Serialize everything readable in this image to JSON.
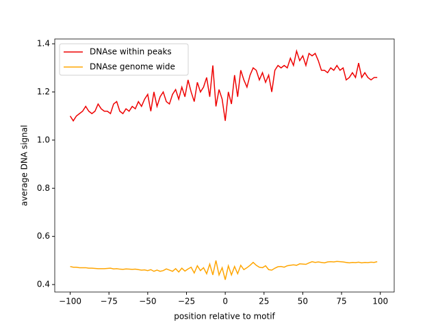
{
  "chart_data": {
    "type": "line",
    "xlabel": "position relative to motif",
    "ylabel": "average DNA signal",
    "x": [
      -100,
      -98,
      -96,
      -94,
      -92,
      -90,
      -88,
      -86,
      -84,
      -82,
      -80,
      -78,
      -76,
      -74,
      -72,
      -70,
      -68,
      -66,
      -64,
      -62,
      -60,
      -58,
      -56,
      -54,
      -52,
      -50,
      -48,
      -46,
      -44,
      -42,
      -40,
      -38,
      -36,
      -34,
      -32,
      -30,
      -28,
      -26,
      -24,
      -22,
      -20,
      -18,
      -16,
      -14,
      -12,
      -10,
      -8,
      -6,
      -4,
      -2,
      0,
      2,
      4,
      6,
      8,
      10,
      12,
      14,
      16,
      18,
      20,
      22,
      24,
      26,
      28,
      30,
      32,
      34,
      36,
      38,
      40,
      42,
      44,
      46,
      48,
      50,
      52,
      54,
      56,
      58,
      60,
      62,
      64,
      66,
      68,
      70,
      72,
      74,
      76,
      78,
      80,
      82,
      84,
      86,
      88,
      90,
      92,
      94,
      96,
      98
    ],
    "series": [
      {
        "name": "DNAse within peaks",
        "color": "#ee0000",
        "values": [
          1.1,
          1.08,
          1.1,
          1.11,
          1.12,
          1.14,
          1.12,
          1.11,
          1.12,
          1.15,
          1.13,
          1.12,
          1.12,
          1.11,
          1.15,
          1.16,
          1.12,
          1.11,
          1.13,
          1.12,
          1.14,
          1.13,
          1.16,
          1.14,
          1.17,
          1.19,
          1.12,
          1.2,
          1.14,
          1.18,
          1.2,
          1.16,
          1.15,
          1.19,
          1.21,
          1.17,
          1.22,
          1.18,
          1.25,
          1.2,
          1.16,
          1.24,
          1.2,
          1.22,
          1.26,
          1.18,
          1.31,
          1.14,
          1.21,
          1.17,
          1.08,
          1.2,
          1.15,
          1.27,
          1.18,
          1.29,
          1.25,
          1.22,
          1.27,
          1.3,
          1.29,
          1.25,
          1.28,
          1.24,
          1.27,
          1.2,
          1.29,
          1.31,
          1.3,
          1.31,
          1.3,
          1.34,
          1.31,
          1.37,
          1.33,
          1.35,
          1.31,
          1.36,
          1.35,
          1.36,
          1.33,
          1.29,
          1.29,
          1.28,
          1.3,
          1.29,
          1.31,
          1.29,
          1.3,
          1.25,
          1.26,
          1.28,
          1.26,
          1.32,
          1.26,
          1.28,
          1.26,
          1.25,
          1.26,
          1.26
        ]
      },
      {
        "name": "DNAse genome wide",
        "color": "#ffa500",
        "values": [
          0.475,
          0.472,
          0.472,
          0.47,
          0.47,
          0.47,
          0.468,
          0.468,
          0.467,
          0.466,
          0.466,
          0.466,
          0.467,
          0.468,
          0.465,
          0.466,
          0.464,
          0.463,
          0.465,
          0.464,
          0.463,
          0.464,
          0.462,
          0.46,
          0.461,
          0.458,
          0.462,
          0.455,
          0.46,
          0.455,
          0.458,
          0.465,
          0.46,
          0.455,
          0.466,
          0.452,
          0.468,
          0.456,
          0.465,
          0.472,
          0.448,
          0.478,
          0.458,
          0.47,
          0.445,
          0.485,
          0.44,
          0.5,
          0.44,
          0.47,
          0.42,
          0.478,
          0.44,
          0.475,
          0.445,
          0.48,
          0.462,
          0.47,
          0.48,
          0.492,
          0.48,
          0.472,
          0.47,
          0.478,
          0.462,
          0.46,
          0.468,
          0.474,
          0.475,
          0.472,
          0.478,
          0.48,
          0.482,
          0.48,
          0.486,
          0.485,
          0.484,
          0.49,
          0.495,
          0.492,
          0.494,
          0.492,
          0.49,
          0.494,
          0.495,
          0.494,
          0.496,
          0.495,
          0.494,
          0.492,
          0.49,
          0.492,
          0.491,
          0.493,
          0.49,
          0.492,
          0.491,
          0.493,
          0.492,
          0.495
        ]
      }
    ],
    "xlim": [
      -109.95,
      108.95
    ],
    "xticks": [
      {
        "value": -100,
        "label": "−100"
      },
      {
        "value": -75,
        "label": "−75"
      },
      {
        "value": -50,
        "label": "−50"
      },
      {
        "value": -25,
        "label": "−25"
      },
      0,
      25,
      50,
      75,
      100
    ],
    "ylim": [
      0.369,
      1.42
    ],
    "yticks": [
      0.4,
      0.6,
      0.8,
      {
        "value": 1,
        "label": "1.0"
      },
      1.2,
      1.4
    ],
    "legend": "upper left"
  }
}
